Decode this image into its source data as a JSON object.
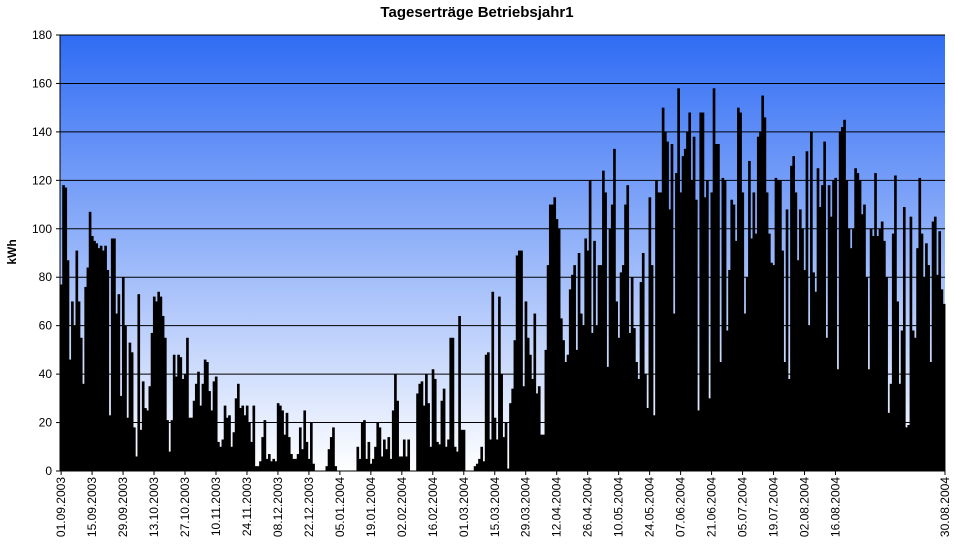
{
  "chart_data": {
    "type": "bar",
    "title": "Tageserträge Betriebsjahr1",
    "xlabel": "",
    "ylabel": "kWh",
    "ylim": [
      0,
      180
    ],
    "yticks": [
      0,
      20,
      40,
      60,
      80,
      100,
      120,
      140,
      160,
      180
    ],
    "grid": true,
    "legend": "none",
    "x_tick_labels": [
      "01.09.2003",
      "15.09.2003",
      "29.09.2003",
      "13.10.2003",
      "27.10.2003",
      "10.11.2003",
      "24.11.2003",
      "08.12.2003",
      "22.12.2003",
      "05.01.2004",
      "19.01.2004",
      "02.02.2004",
      "16.02.2004",
      "01.03.2004",
      "15.03.2004",
      "29.03.2004",
      "12.04.2004",
      "26.04.2004",
      "10.05.2004",
      "24.05.2004",
      "07.06.2004",
      "21.06.2004",
      "05.07.2004",
      "19.07.2004",
      "02.08.2004",
      "16.08.2004",
      "30.08.2004"
    ],
    "period_start": "01.09.2003",
    "period_end": "30.08.2004",
    "colors": {
      "bar": "#000000",
      "plot_top": "#2f6cf4",
      "plot_bottom": "#ffffff",
      "grid": "#000000"
    },
    "series": [
      {
        "values": [
          77,
          118,
          117,
          87,
          46,
          70,
          60,
          91,
          70,
          55,
          36,
          76,
          84,
          107,
          97,
          95,
          94,
          92,
          93,
          91,
          93,
          83,
          23,
          96,
          96,
          65,
          73,
          31,
          80,
          60,
          22,
          53,
          49,
          18,
          6,
          73,
          17,
          37,
          26,
          25,
          35,
          57,
          72,
          70,
          74,
          72,
          64,
          55,
          21,
          8,
          21,
          48,
          39,
          48,
          47,
          38,
          40,
          55,
          22,
          22,
          29,
          36,
          41,
          27,
          36,
          46,
          45,
          33,
          25,
          37,
          39,
          12,
          10,
          13,
          27,
          22,
          23,
          10,
          16,
          30,
          36,
          26,
          27,
          23,
          27,
          20,
          12,
          27,
          2,
          2,
          4,
          14,
          21,
          5,
          7,
          4,
          5,
          4,
          28,
          27,
          25,
          15,
          24,
          14,
          7,
          5,
          5,
          7,
          18,
          9,
          25,
          12,
          5,
          20,
          3,
          0,
          0,
          0,
          0,
          0,
          2,
          9,
          14,
          18,
          2,
          0,
          0,
          0,
          0,
          0,
          0,
          0,
          0,
          0,
          10,
          5,
          20,
          21,
          5,
          12,
          3,
          5,
          10,
          20,
          18,
          6,
          13,
          9,
          14,
          5,
          25,
          40,
          29,
          6,
          6,
          13,
          6,
          13,
          0,
          0,
          0,
          32,
          36,
          37,
          27,
          40,
          28,
          10,
          42,
          38,
          12,
          11,
          29,
          34,
          10,
          13,
          55,
          55,
          10,
          8,
          64,
          17,
          17,
          0,
          0,
          0,
          0,
          2,
          3,
          5,
          10,
          4,
          48,
          49,
          13,
          74,
          22,
          13,
          72,
          40,
          14,
          20,
          1,
          28,
          34,
          54,
          89,
          91,
          91,
          35,
          70,
          55,
          48,
          38,
          65,
          32,
          35,
          15,
          15,
          50,
          85,
          110,
          110,
          113,
          104,
          100,
          63,
          54,
          45,
          48,
          75,
          81,
          85,
          50,
          90,
          65,
          60,
          96,
          91,
          120,
          57,
          95,
          60,
          85,
          85,
          124,
          115,
          43,
          100,
          110,
          133,
          70,
          55,
          82,
          85,
          110,
          118,
          57,
          80,
          59,
          45,
          38,
          78,
          90,
          40,
          26,
          113,
          85,
          23,
          120,
          115,
          115,
          150,
          140,
          136,
          108,
          135,
          65,
          123,
          158,
          115,
          130,
          133,
          140,
          148,
          120,
          138,
          112,
          25,
          148,
          148,
          113,
          120,
          30,
          115,
          158,
          135,
          135,
          45,
          121,
          120,
          58,
          83,
          112,
          110,
          95,
          150,
          148,
          115,
          65,
          80,
          128,
          96,
          115,
          98,
          138,
          140,
          155,
          146,
          115,
          98,
          86,
          85,
          121,
          120,
          120,
          91,
          45,
          108,
          38,
          126,
          130,
          115,
          87,
          108,
          100,
          83,
          132,
          60,
          140,
          82,
          74,
          125,
          109,
          118,
          136,
          55,
          118,
          105,
          120,
          121,
          42,
          140,
          142,
          145,
          120,
          100,
          92,
          100,
          125,
          123,
          120,
          106,
          110,
          80,
          42,
          100,
          97,
          123,
          97,
          100,
          103,
          95,
          80,
          24,
          36,
          98,
          122,
          70,
          36,
          58,
          109,
          18,
          19,
          105,
          58,
          55,
          92,
          121,
          98,
          80,
          94,
          85,
          45,
          103,
          105,
          81,
          99,
          75,
          69
        ]
      }
    ]
  }
}
